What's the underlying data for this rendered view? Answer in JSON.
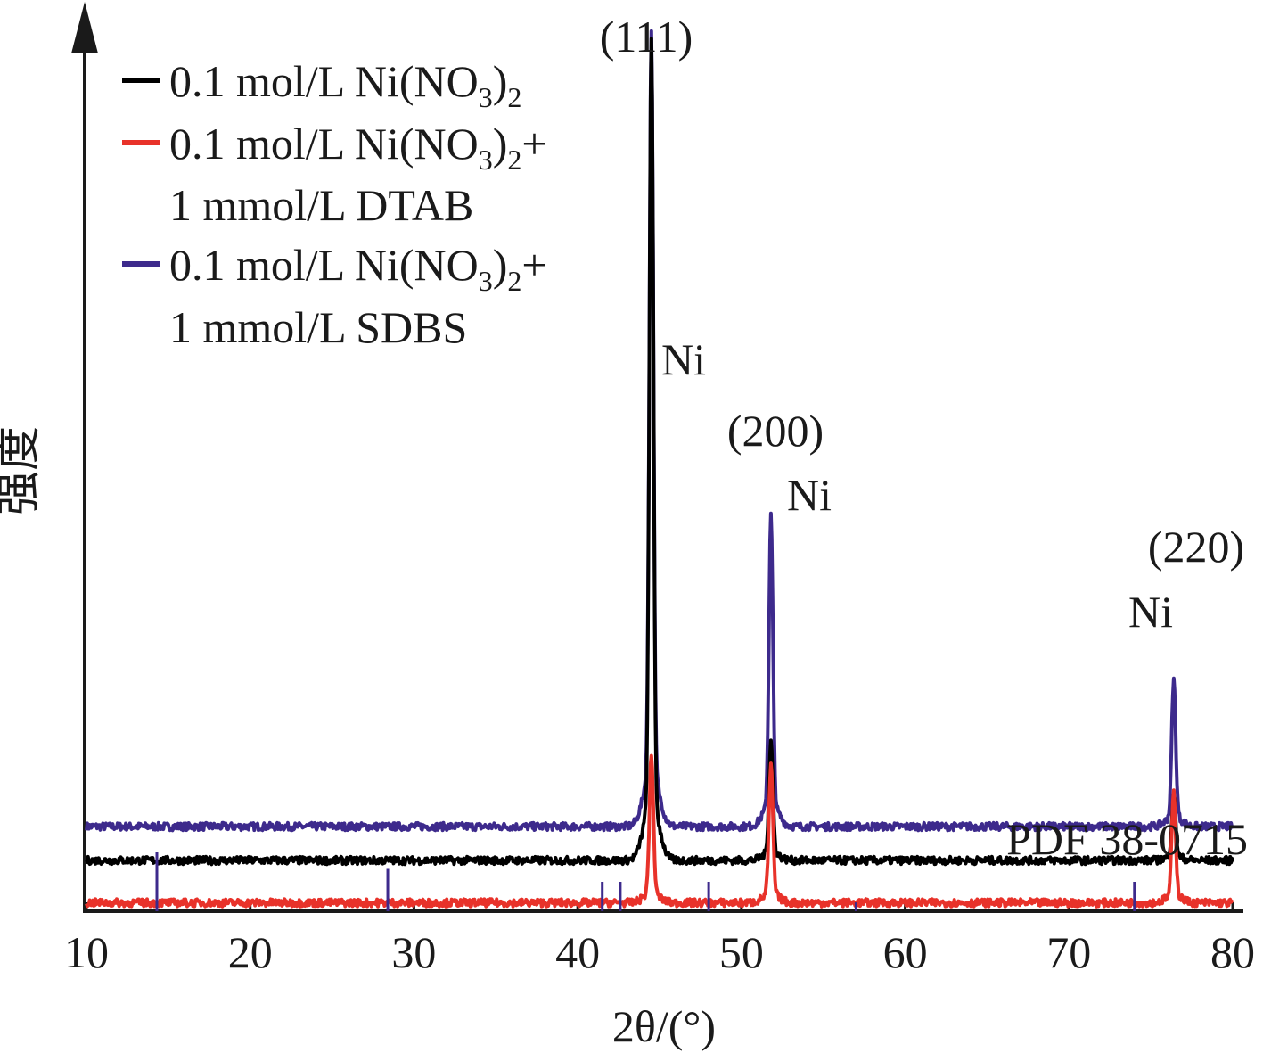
{
  "chart_data": {
    "type": "line",
    "xlabel": "2θ/(°)",
    "ylabel": "强度",
    "xlim": [
      10,
      80
    ],
    "x_ticks": [
      "10",
      "20",
      "30",
      "40",
      "50",
      "60",
      "70",
      "80"
    ],
    "grid": false,
    "legend": {
      "position": "top-left",
      "entries": [
        {
          "line1": "0.1 mol/L Ni(NO",
          "sub": "3",
          "close": ")",
          "sub2": "2",
          "suffix": "",
          "line2": "",
          "color": "#000000"
        },
        {
          "line1": "0.1 mol/L Ni(NO",
          "sub": "3",
          "close": ")",
          "sub2": "2",
          "suffix": "+",
          "line2": "1 mmol/L DTAB",
          "color": "#e8322a"
        },
        {
          "line1": "0.1 mol/L Ni(NO",
          "sub": "3",
          "close": ")",
          "sub2": "2",
          "suffix": "+",
          "line2": "1 mmol/L SDBS",
          "color": "#3d2a8c"
        }
      ]
    },
    "annotations": {
      "peak_111": "(111)",
      "peak_200": "(200)",
      "peak_220": "(220)",
      "ni_1": "Ni",
      "ni_2": "Ni",
      "ni_3": "Ni",
      "reference": "PDF 38-0715"
    },
    "series": [
      {
        "color": "#3d2a8c",
        "baseline": 0.1,
        "peaks": [
          {
            "x": 44.5,
            "height": 0.87
          },
          {
            "x": 51.8,
            "height": 0.34
          },
          {
            "x": 76.4,
            "height": 0.16
          }
        ]
      },
      {
        "color": "#000000",
        "baseline": 0.06,
        "peaks": [
          {
            "x": 44.5,
            "height": 0.9
          },
          {
            "x": 51.8,
            "height": 0.13
          },
          {
            "x": 76.4,
            "height": 0.07
          }
        ]
      },
      {
        "color": "#e8322a",
        "baseline": 0.01,
        "peaks": [
          {
            "x": 44.5,
            "height": 0.16
          },
          {
            "x": 51.8,
            "height": 0.15
          },
          {
            "x": 76.4,
            "height": 0.12
          }
        ]
      }
    ],
    "reference_lines": {
      "color": "#3d2a8c",
      "x": [
        14.3,
        28.4,
        41.5,
        42.6,
        48.0,
        57.0,
        74.0
      ],
      "rel_height": [
        1.0,
        0.72,
        0.5,
        0.5,
        0.5,
        0.15,
        0.5
      ]
    }
  }
}
